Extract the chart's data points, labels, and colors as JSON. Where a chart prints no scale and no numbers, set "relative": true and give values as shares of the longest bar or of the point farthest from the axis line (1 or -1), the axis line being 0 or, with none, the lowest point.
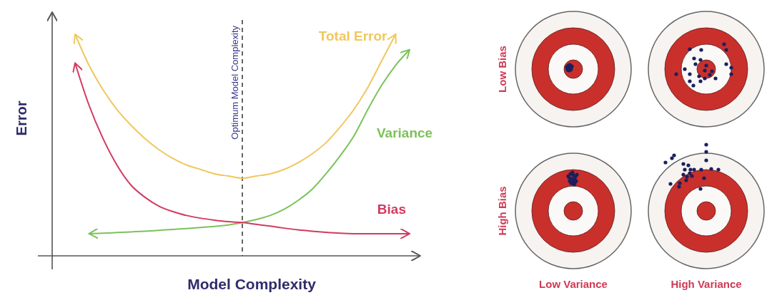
{
  "chart_data": [
    {
      "type": "line",
      "xlabel": "Model Complexity",
      "ylabel": "Error",
      "relative": true,
      "categories": [
        null,
        null,
        null,
        null,
        null,
        null,
        null,
        null,
        null,
        null,
        null,
        null,
        null,
        null,
        null,
        null,
        null,
        null,
        null,
        null,
        null,
        null,
        null,
        null,
        null
      ],
      "series": [
        {
          "name": "Total Error",
          "color": "#f0c75e",
          "values": [
            1.0,
            0.86,
            0.75,
            0.66,
            0.59,
            0.53,
            0.48,
            0.44,
            0.41,
            0.39,
            0.37,
            0.36,
            0.35,
            0.36,
            0.37,
            0.39,
            0.42,
            0.46,
            0.51,
            0.58,
            0.66,
            0.76,
            0.88,
            1.0,
            null
          ]
        },
        {
          "name": "Variance",
          "color": "#7cc25a",
          "values": [
            null,
            0.1,
            0.102,
            0.105,
            0.108,
            0.111,
            0.115,
            0.119,
            0.123,
            0.128,
            0.133,
            0.139,
            0.15,
            0.164,
            0.182,
            0.21,
            0.25,
            0.3,
            0.37,
            0.45,
            0.54,
            0.66,
            0.77,
            0.86,
            0.93
          ]
        },
        {
          "name": "Bias",
          "color": "#d23a5f",
          "values": [
            0.87,
            0.68,
            0.53,
            0.41,
            0.32,
            0.265,
            0.225,
            0.2,
            0.182,
            0.17,
            0.161,
            0.154,
            0.15,
            0.142,
            0.134,
            0.125,
            0.117,
            0.111,
            0.106,
            0.102,
            0.1,
            0.1,
            0.1,
            0.1,
            0.1
          ]
        }
      ],
      "annotations": [
        "Optimum Model Complexity"
      ]
    },
    {
      "type": "other",
      "annotations": [
        "Low Bias",
        "High Bias",
        "Low Variance",
        "High Variance"
      ]
    }
  ]
}
